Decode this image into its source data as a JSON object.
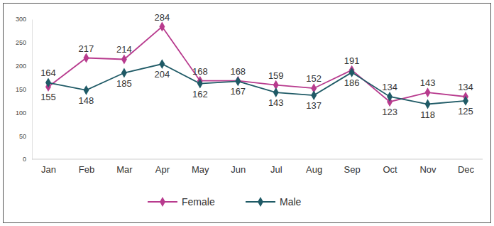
{
  "chart_data": {
    "type": "line",
    "categories": [
      "Jan",
      "Feb",
      "Mar",
      "Apr",
      "May",
      "Jun",
      "Jul",
      "Aug",
      "Sep",
      "Oct",
      "Nov",
      "Dec"
    ],
    "series": [
      {
        "name": "Female",
        "color": "#b83b8e",
        "marker": "diamond",
        "values": [
          155,
          217,
          214,
          284,
          168,
          168,
          159,
          152,
          191,
          123,
          143,
          134
        ]
      },
      {
        "name": "Male",
        "color": "#1f5a66",
        "marker": "diamond",
        "values": [
          164,
          148,
          185,
          204,
          162,
          167,
          143,
          137,
          186,
          134,
          118,
          125
        ]
      }
    ],
    "ylim": [
      0,
      300
    ],
    "yticks": [
      0,
      50,
      100,
      150,
      200,
      250,
      300
    ],
    "data_labels": true,
    "legend": "bottom",
    "grid": false
  }
}
